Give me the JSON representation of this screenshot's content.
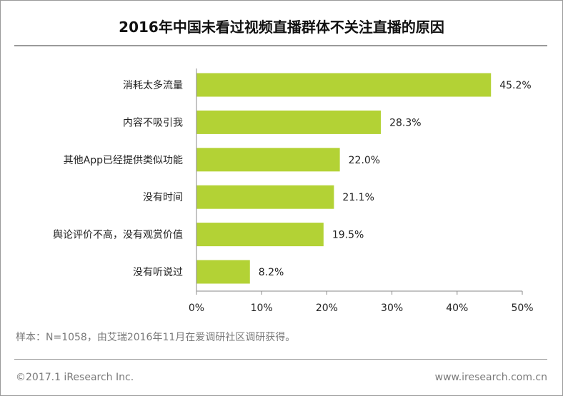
{
  "chart_data": {
    "type": "bar",
    "orientation": "horizontal",
    "title": "2016年中国未看过视频直播群体不关注直播的原因",
    "categories": [
      "消耗太多流量",
      "内容不吸引我",
      "其他App已经提供类似功能",
      "没有时间",
      "舆论评价不高，没有观赏价值",
      "没有听说过"
    ],
    "values": [
      45.2,
      28.3,
      22.0,
      21.1,
      19.5,
      8.2
    ],
    "value_labels": [
      "45.2%",
      "28.3%",
      "22.0%",
      "21.1%",
      "19.5%",
      "8.2%"
    ],
    "xlim": [
      0,
      50
    ],
    "xticks": [
      "0%",
      "10%",
      "20%",
      "30%",
      "40%",
      "50%"
    ],
    "bar_color": "#b3d235",
    "grid": false,
    "legend": "none"
  },
  "source_note": "样本：N=1058，由艾瑞2016年11月在爱调研社区调研获得。",
  "footer": {
    "copyright": "©2017.1 iResearch Inc.",
    "website": "www.iresearch.com.cn"
  }
}
